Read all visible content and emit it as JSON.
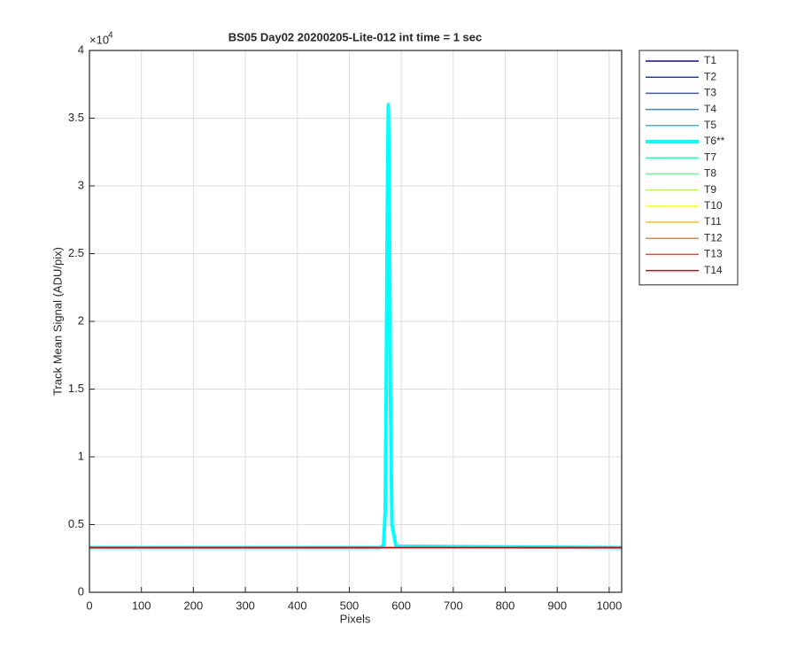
{
  "chart_data": {
    "type": "line",
    "title": "BS05 Day02 20200205-Lite-012 int time = 1 sec",
    "xlabel": "Pixels",
    "ylabel": "Track Mean Signal (ADU/pix)",
    "y_multiplier_base": "×10",
    "y_multiplier_exponent": "4",
    "x": [
      1,
      560,
      566,
      569,
      571,
      573,
      575,
      577,
      579,
      582,
      590,
      1024
    ],
    "series": [
      {
        "name": "T1",
        "color": "#0a0aa8",
        "linewidth": 1.5,
        "values": [
          3300,
          3300,
          3300,
          3300,
          3300,
          3300,
          3300,
          3300,
          3300,
          3300,
          3300,
          3300
        ]
      },
      {
        "name": "T2",
        "color": "#1a3ed0",
        "linewidth": 1.5,
        "values": [
          3300,
          3300,
          3300,
          3300,
          3300,
          3300,
          3300,
          3300,
          3300,
          3300,
          3300,
          3300
        ]
      },
      {
        "name": "T3",
        "color": "#1e5fe0",
        "linewidth": 1.5,
        "values": [
          3300,
          3300,
          3300,
          3300,
          3300,
          3300,
          3300,
          3300,
          3300,
          3300,
          3300,
          3300
        ]
      },
      {
        "name": "T4",
        "color": "#1f8ee8",
        "linewidth": 1.5,
        "values": [
          3300,
          3300,
          3300,
          3300,
          3300,
          3300,
          3300,
          3300,
          3300,
          3300,
          3300,
          3300
        ]
      },
      {
        "name": "T5",
        "color": "#1fc0f5",
        "linewidth": 1.5,
        "values": [
          3300,
          3300,
          3300,
          3300,
          3300,
          3300,
          3300,
          3300,
          3300,
          3300,
          3300,
          3300
        ]
      },
      {
        "name": "T6**",
        "color": "#00ffff",
        "linewidth": 4,
        "values": [
          3300,
          3300,
          3500,
          6000,
          15000,
          28000,
          36000,
          30000,
          15000,
          5000,
          3400,
          3300
        ]
      },
      {
        "name": "T7",
        "color": "#40f0c8",
        "linewidth": 1.5,
        "values": [
          3300,
          3300,
          3300,
          3300,
          3300,
          3300,
          3300,
          3300,
          3300,
          3300,
          3300,
          3300
        ]
      },
      {
        "name": "T8",
        "color": "#80f0a0",
        "linewidth": 1.5,
        "values": [
          3300,
          3300,
          3300,
          3300,
          3300,
          3300,
          3300,
          3300,
          3300,
          3300,
          3300,
          3300
        ]
      },
      {
        "name": "T9",
        "color": "#c0f060",
        "linewidth": 1.5,
        "values": [
          3300,
          3300,
          3300,
          3300,
          3300,
          3300,
          3300,
          3300,
          3300,
          3300,
          3300,
          3300
        ]
      },
      {
        "name": "T10",
        "color": "#ffff20",
        "linewidth": 1.5,
        "values": [
          3300,
          3300,
          3300,
          3300,
          3300,
          3300,
          3300,
          3300,
          3300,
          3300,
          3300,
          3300
        ]
      },
      {
        "name": "T11",
        "color": "#f0c020",
        "linewidth": 1.5,
        "values": [
          3300,
          3300,
          3300,
          3300,
          3300,
          3300,
          3300,
          3300,
          3300,
          3300,
          3300,
          3300
        ]
      },
      {
        "name": "T12",
        "color": "#ff8020",
        "linewidth": 1.5,
        "values": [
          3300,
          3300,
          3300,
          3300,
          3300,
          3300,
          3300,
          3300,
          3300,
          3300,
          3300,
          3300
        ]
      },
      {
        "name": "T13",
        "color": "#ff4010",
        "linewidth": 1.5,
        "values": [
          3300,
          3300,
          3300,
          3300,
          3300,
          3300,
          3300,
          3300,
          3300,
          3300,
          3300,
          3300
        ]
      },
      {
        "name": "T14",
        "color": "#e00000",
        "linewidth": 1.5,
        "values": [
          3300,
          3300,
          3300,
          3300,
          3300,
          3300,
          3300,
          3300,
          3300,
          3300,
          3300,
          3300
        ]
      }
    ],
    "xlim": [
      0,
      1024
    ],
    "xticks": [
      0,
      100,
      200,
      300,
      400,
      500,
      600,
      700,
      800,
      900,
      1000
    ],
    "ylim": [
      0,
      40000
    ],
    "yticks": [
      0,
      {
        "value": 5000,
        "label": "0.5"
      },
      {
        "value": 10000,
        "label": "1"
      },
      {
        "value": 15000,
        "label": "1.5"
      },
      {
        "value": 20000,
        "label": "2"
      },
      {
        "value": 25000,
        "label": "2.5"
      },
      {
        "value": 30000,
        "label": "3"
      },
      {
        "value": 35000,
        "label": "3.5"
      },
      {
        "value": 40000,
        "label": "4"
      }
    ],
    "grid": true,
    "legend": "outside-right"
  }
}
